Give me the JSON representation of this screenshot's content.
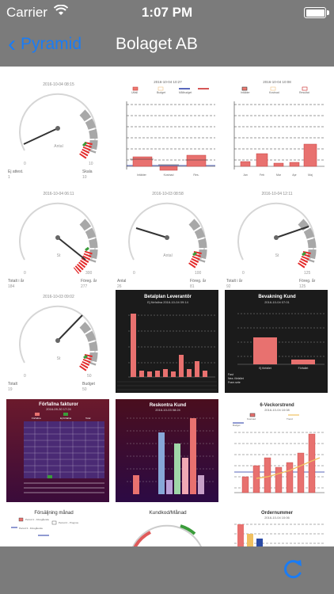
{
  "status": {
    "carrier": "Carrier",
    "time": "1:07 PM"
  },
  "nav": {
    "back_label": "Pyramid",
    "title": "Bolaget AB"
  },
  "tiles": {
    "g1": {
      "date": "2016-10-04 08:15",
      "name": "Antal",
      "min": "0",
      "max": "10",
      "l_label": "Ej attest.",
      "l_value": "1",
      "r_label": "Skala",
      "r_value": "10"
    },
    "b1": {
      "date": "2016-10-04 10:27",
      "legend": [
        "Utfall",
        "Budget",
        "Målbudget"
      ],
      "cats": [
        "Intäkter",
        "Kostnad",
        "Res."
      ]
    },
    "b2": {
      "date": "2016-10-04 10:08",
      "legend": [
        "Intäkter",
        "Kostnad",
        "Resultat"
      ],
      "cats": [
        "Jan",
        "Feb",
        "Mar",
        "Apr",
        "Maj"
      ]
    },
    "g2": {
      "date": "2016-10-04 06:11",
      "name": "St",
      "min": "0",
      "max": "300",
      "l_label": "Totalt i år",
      "l_value": "184",
      "r_label": "Föreg. år",
      "r_value": "277"
    },
    "g3": {
      "date": "2016-10-03 08:58",
      "name": "Antal",
      "min": "0",
      "max": "100",
      "l_label": "Antal",
      "l_value": "26",
      "r_label": "Föreg. år",
      "r_value": "81"
    },
    "g4": {
      "date": "2016-10-04 12:11",
      "name": "St",
      "min": "0",
      "max": "125",
      "l_label": "Totalt i år",
      "l_value": "92",
      "r_label": "Föreg. år",
      "r_value": "125"
    },
    "g5": {
      "date": "2016-10-03 09:02",
      "name": "St",
      "min": "0",
      "max": "50",
      "l_label": "Totalt",
      "l_value": "19",
      "r_label": "Budget",
      "r_value": "50"
    },
    "d1": {
      "title": "Betalplan Leverantör",
      "date": "Ej förfallna 2016-10-04 09:14"
    },
    "d2": {
      "title": "Bevakning Kund",
      "date": "2016-10-04 07:01",
      "cats": [
        "Ej förfallet",
        "Förfallet"
      ],
      "foot": [
        "Fast",
        "Nea. förfallet",
        "Fram.sete"
      ]
    },
    "p1": {
      "title": "Förfallna fakturor",
      "date": "2016-09-30 17:24",
      "legend": [
        "Förfallna",
        "Ej förfallna",
        "Total"
      ]
    },
    "p2": {
      "title": "Reskontra Kund",
      "date": "2016-10-03 08:24"
    },
    "w1": {
      "title": "6-Veckorstrend",
      "date": "2016-10-04 10:08",
      "legend": [
        "Kostnad",
        "Trend",
        "Budget"
      ]
    },
    "r1": {
      "title": "Försäljning månad",
      "legend": [
        "Period 1 - Föregående",
        "Period 2 - Prognos",
        "Period 3 - Föregående"
      ]
    },
    "k1": {
      "title": "Kundkod/Månad"
    },
    "o1": {
      "title": "Ordernummer",
      "date": "2016-10-04 10:06"
    }
  },
  "colors": {
    "accent": "#1a7cf5",
    "bar": "#e8716f",
    "bar_border": "#c43c3c",
    "chrome": "#7b7b7b"
  },
  "icons": {
    "refresh": "refresh-icon",
    "back": "chevron-left-icon"
  }
}
